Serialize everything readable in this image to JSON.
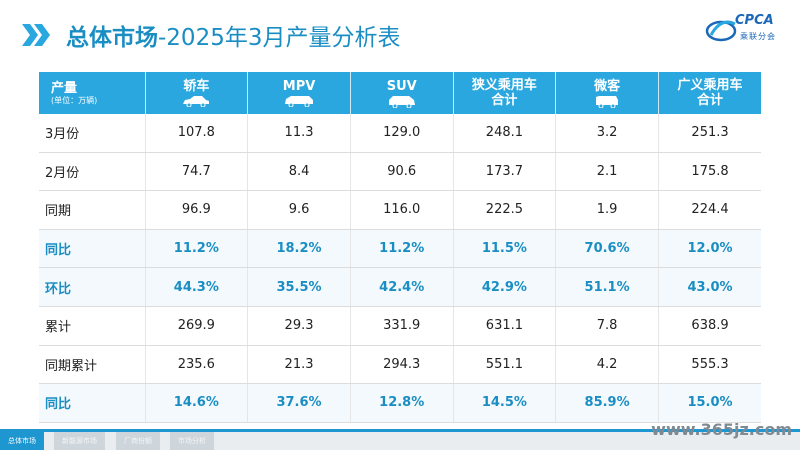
{
  "header": {
    "title_main": "总体市场",
    "title_sub": "-2025年3月产量分析表",
    "logo_text": "CPCA",
    "logo_sub": "乘联分会"
  },
  "table": {
    "corner_title": "产量",
    "corner_unit": "(单位：万辆)",
    "columns": [
      {
        "label": "轿车",
        "icon": "sedan-icon"
      },
      {
        "label": "MPV",
        "icon": "mpv-icon"
      },
      {
        "label": "SUV",
        "icon": "suv-icon"
      },
      {
        "label": "狭义乘用车\n合计",
        "icon": ""
      },
      {
        "label": "微客",
        "icon": "minivan-icon"
      },
      {
        "label": "广义乘用车\n合计",
        "icon": ""
      }
    ],
    "rows": [
      {
        "label": "3月份",
        "values": [
          "107.8",
          "11.3",
          "129.0",
          "248.1",
          "3.2",
          "251.3"
        ],
        "highlight": false
      },
      {
        "label": "2月份",
        "values": [
          "74.7",
          "8.4",
          "90.6",
          "173.7",
          "2.1",
          "175.8"
        ],
        "highlight": false
      },
      {
        "label": "同期",
        "values": [
          "96.9",
          "9.6",
          "116.0",
          "222.5",
          "1.9",
          "224.4"
        ],
        "highlight": false
      },
      {
        "label": "同比",
        "values": [
          "11.2%",
          "18.2%",
          "11.2%",
          "11.5%",
          "70.6%",
          "12.0%"
        ],
        "highlight": true
      },
      {
        "label": "环比",
        "values": [
          "44.3%",
          "35.5%",
          "42.4%",
          "42.9%",
          "51.1%",
          "43.0%"
        ],
        "highlight": true
      },
      {
        "label": "累计",
        "values": [
          "269.9",
          "29.3",
          "331.9",
          "631.1",
          "7.8",
          "638.9"
        ],
        "highlight": false
      },
      {
        "label": "同期累计",
        "values": [
          "235.6",
          "21.3",
          "294.3",
          "551.1",
          "4.2",
          "555.3"
        ],
        "highlight": false
      },
      {
        "label": "同比",
        "values": [
          "14.6%",
          "37.6%",
          "12.8%",
          "14.5%",
          "85.9%",
          "15.0%"
        ],
        "highlight": true
      }
    ]
  },
  "footer": {
    "tabs": [
      "总体市场",
      "新能源市场",
      "厂商份额",
      "市场分析"
    ],
    "site": "www.365jz.com"
  },
  "colors": {
    "accent": "#2aa7de",
    "title": "#1a8ec3"
  }
}
